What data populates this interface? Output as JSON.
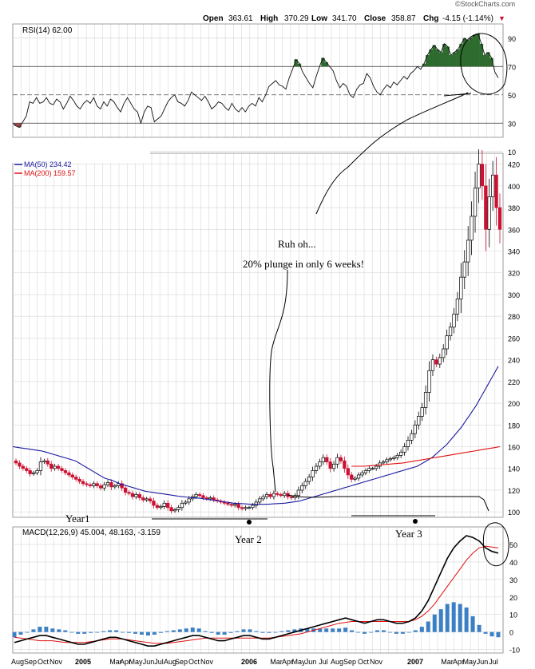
{
  "header": {
    "watermark": "©StockCharts.com",
    "open_label": "Open",
    "open": "363.61",
    "high_label": "High",
    "high": "370.29",
    "low_label": "Low",
    "low": "341.70",
    "close_label": "Close",
    "close": "358.87",
    "chg_label": "Chg",
    "chg": "-4.15 (-1.14%)",
    "chg_arrow": "▼"
  },
  "colors": {
    "grid": "#d8d8d8",
    "ma50": "#1a1aa0",
    "ma200": "#e01010",
    "up_candle": "#ffffff",
    "down_candle": "#cc1133",
    "rsi_fill": "#2e6b2e",
    "macd_hist": "#3b7fc4",
    "signal": "#e01010"
  },
  "annotations": {
    "ruh_oh": "Ruh oh...",
    "plunge": "20% plunge in only 6 weeks!",
    "year1": "Year1",
    "year2": "Year 2",
    "year3": "Year 3"
  },
  "x_axis_labels": [
    "Aug",
    "Sep",
    "Oct",
    "Nov",
    "2005",
    "Mar",
    "Apr",
    "May",
    "Jun",
    "Jul",
    "Aug",
    "Sep",
    "Oct",
    "Nov",
    "2006",
    "Mar",
    "Apr",
    "May",
    "Jun",
    "Jul",
    "Aug",
    "Sep",
    "Oct",
    "Nov",
    "2007",
    "Mar",
    "Apr",
    "May",
    "Jun",
    "Jul"
  ],
  "chart_data": [
    {
      "type": "line",
      "title": "RSI(14) 62.00",
      "ylim": [
        20,
        100
      ],
      "y_ticks": [
        10,
        30,
        50,
        70,
        90
      ],
      "overbought": 70,
      "oversold": 30,
      "midline": 50,
      "values": [
        30,
        28,
        27,
        31,
        35,
        45,
        44,
        48,
        44,
        45,
        48,
        44,
        43,
        47,
        45,
        40,
        44,
        49,
        46,
        42,
        40,
        44,
        46,
        44,
        48,
        42,
        40,
        45,
        42,
        47,
        45,
        41,
        38,
        44,
        48,
        44,
        40,
        38,
        30,
        38,
        42,
        41,
        31,
        33,
        35,
        40,
        45,
        48,
        50,
        45,
        44,
        42,
        46,
        52,
        50,
        48,
        46,
        49,
        45,
        40,
        42,
        45,
        44,
        41,
        39,
        44,
        40,
        38,
        41,
        38,
        42,
        44,
        42,
        48,
        45,
        50,
        56,
        58,
        60,
        57,
        56,
        54,
        62,
        68,
        75,
        72,
        66,
        62,
        58,
        55,
        63,
        70,
        76,
        73,
        70,
        67,
        60,
        55,
        58,
        56,
        50,
        48,
        54,
        57,
        58,
        65,
        62,
        56,
        52,
        50,
        54,
        57,
        55,
        59,
        57,
        60,
        63,
        61,
        65,
        67,
        70,
        68,
        72,
        78,
        82,
        85,
        82,
        80,
        86,
        84,
        78,
        80,
        82,
        86,
        90,
        88,
        90,
        92,
        93,
        86,
        78,
        80,
        76,
        66,
        62
      ]
    },
    {
      "type": "candlestick",
      "title": "",
      "legend": [
        "MA(50) 234.42",
        "MA(200) 159.57"
      ],
      "ylim": [
        95,
        430
      ],
      "y_ticks": [
        100,
        120,
        140,
        160,
        180,
        200,
        220,
        240,
        260,
        280,
        300,
        320,
        340,
        360,
        380,
        400,
        420
      ],
      "close": [
        145,
        142,
        140,
        138,
        135,
        136,
        138,
        146,
        147,
        144,
        140,
        142,
        140,
        138,
        136,
        134,
        132,
        130,
        128,
        126,
        125,
        124,
        126,
        124,
        122,
        125,
        127,
        123,
        124,
        126,
        122,
        118,
        117,
        114,
        116,
        113,
        111,
        112,
        110,
        106,
        104,
        105,
        108,
        104,
        101,
        102,
        104,
        108,
        109,
        112,
        114,
        116,
        115,
        113,
        112,
        113,
        111,
        110,
        109,
        108,
        107,
        106,
        107,
        104,
        103,
        104,
        104,
        106,
        109,
        112,
        114,
        116,
        114,
        117,
        116,
        115,
        117,
        114,
        113,
        115,
        120,
        124,
        128,
        132,
        138,
        142,
        146,
        150,
        146,
        140,
        144,
        150,
        147,
        140,
        134,
        130,
        131,
        134,
        136,
        138,
        140,
        140,
        142,
        145,
        146,
        148,
        149,
        150,
        152,
        155,
        160,
        166,
        172,
        180,
        188,
        196,
        210,
        230,
        240,
        236,
        242,
        250,
        262,
        270,
        282,
        296,
        316,
        330,
        350,
        372,
        398,
        420,
        400,
        360,
        390,
        410,
        380,
        360
      ],
      "ma50": [
        160,
        159.5,
        159,
        158.5,
        158,
        157.5,
        157,
        156.5,
        156,
        155,
        154,
        153,
        152,
        151,
        150,
        149,
        148,
        147,
        145,
        143,
        141,
        139,
        137,
        135,
        133,
        131,
        130,
        129,
        127.5,
        126,
        125,
        124,
        123,
        122,
        121,
        120,
        119,
        118.5,
        118,
        117.5,
        117,
        116.5,
        116,
        115.5,
        115,
        114.5,
        114,
        113.7,
        113.4,
        113.1,
        112.8,
        112.5,
        112,
        111.5,
        111,
        110.5,
        110,
        109.5,
        109,
        108.5,
        108,
        107.8,
        107.6,
        107.4,
        107.2,
        107,
        107,
        107,
        107,
        107,
        107.2,
        107.4,
        107.6,
        107.8,
        108,
        108.5,
        109,
        109.5,
        110,
        111,
        112,
        113,
        114,
        115,
        116,
        117,
        118,
        119,
        120,
        121,
        122,
        123,
        124,
        125,
        126,
        127,
        128,
        129,
        130,
        131,
        132,
        133,
        134,
        135,
        136,
        137,
        138,
        139,
        140,
        141,
        142,
        144,
        146,
        148,
        150,
        153,
        156,
        159,
        162,
        166,
        170,
        174,
        178,
        183,
        188,
        193,
        198,
        204,
        210,
        216,
        222,
        228,
        234
      ],
      "ma200": [
        142,
        142,
        142,
        142.5,
        143,
        143.5,
        144,
        144.5,
        145,
        146,
        147,
        148,
        149,
        150,
        151,
        152,
        153,
        154,
        155,
        156,
        157,
        158,
        159,
        160
      ]
    },
    {
      "type": "line",
      "title": "MACD(12,26,9) 45.004, 48.163, -3.159",
      "ylim": [
        -12,
        60
      ],
      "y_ticks": [
        -10,
        0,
        10,
        20,
        30,
        40,
        50
      ],
      "macd": [
        -6,
        -5,
        -4,
        -3,
        -2,
        -2,
        -3,
        -4,
        -5,
        -6,
        -7,
        -7,
        -6,
        -5,
        -4,
        -3,
        -3,
        -4,
        -5,
        -6,
        -7,
        -8,
        -8,
        -7,
        -6,
        -5,
        -4,
        -3,
        -2,
        -2,
        -3,
        -4,
        -5,
        -5,
        -4,
        -3,
        -2,
        -2,
        -3,
        -4,
        -4,
        -3,
        -2,
        -1,
        0,
        1,
        2,
        3,
        4,
        5,
        6,
        7,
        8,
        7,
        6,
        5,
        6,
        7,
        7,
        6,
        5,
        5,
        6,
        8,
        12,
        18,
        26,
        34,
        42,
        48,
        52,
        55,
        54,
        52,
        48,
        46,
        45
      ],
      "signal": [
        -3,
        -3.5,
        -4,
        -4.5,
        -5,
        -5,
        -5,
        -5.5,
        -6,
        -6,
        -6,
        -6,
        -5.5,
        -5,
        -4.5,
        -4,
        -4,
        -4,
        -4.5,
        -5,
        -5.5,
        -6,
        -6.5,
        -6.5,
        -6.5,
        -6,
        -5.5,
        -5,
        -4.5,
        -4,
        -3.5,
        -3.5,
        -3.5,
        -3.5,
        -3.5,
        -3.5,
        -3.5,
        -3.5,
        -3.5,
        -3.5,
        -3.5,
        -3,
        -2.5,
        -2,
        -1.5,
        -1,
        0,
        1,
        2,
        3,
        4,
        5,
        5.5,
        6,
        6,
        6,
        6,
        6,
        6,
        6,
        6,
        6,
        6,
        7,
        9,
        12,
        16,
        21,
        26,
        31,
        36,
        41,
        45,
        48,
        49,
        48.5,
        48
      ]
    }
  ]
}
